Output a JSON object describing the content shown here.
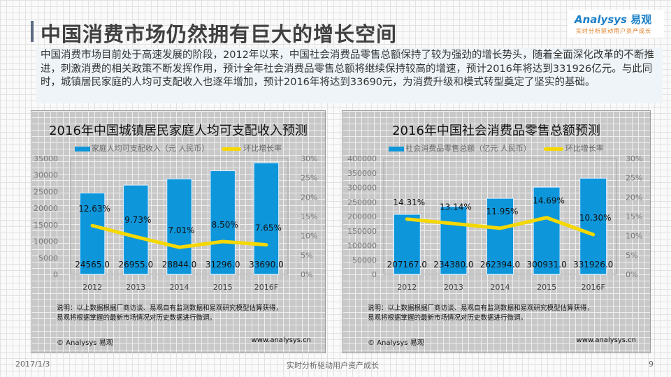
{
  "header": {
    "title": "中国消费市场仍然拥有巨大的增长空间",
    "logo_brand": "Analysys",
    "logo_cn": "易观",
    "logo_slogan": "实时分析驱动用户资产成长"
  },
  "intro": "中国消费市场目前处于高速发展的阶段，2012年以来，中国社会消费品零售总额保持了较为强劲的增长势头，随着全面深化改革的不断推进，刺激消费的相关政策不断发挥作用，预计全年社会消费品零售总额将继续保持较高的增速，预计2016年将达到331926亿元。与此同时，城镇居民家庭的人均可支配收入也逐年增加，预计2016年将达到33690元，为消费升级和模式转型奠定了坚实的基础。",
  "chart_data": [
    {
      "type": "bar",
      "title": "2016年中国城镇居民家庭人均可支配收入预测",
      "categories": [
        "2012",
        "2013",
        "2014",
        "2015",
        "2016F"
      ],
      "series": [
        {
          "name": "家庭人均可支配收入（元 人民币）",
          "values": [
            24565.0,
            26955.0,
            28844.0,
            31296.0,
            33690.0
          ],
          "labels": [
            "24565.0",
            "26955.0",
            "28844.0",
            "31296.0",
            "33690.0"
          ]
        },
        {
          "name": "环比增长率",
          "type": "line",
          "values": [
            12.63,
            9.73,
            7.01,
            8.5,
            7.65
          ],
          "labels": [
            "12.63%",
            "9.73%",
            "7.01%",
            "8.50%",
            "7.65%"
          ]
        }
      ],
      "ylim": [
        0,
        35000
      ],
      "yticks": [
        "0",
        "5000",
        "10000",
        "15000",
        "20000",
        "25000",
        "30000",
        "35000"
      ],
      "y2lim": [
        0,
        30
      ],
      "y2ticks": [
        "0%",
        "5%",
        "10%",
        "15%",
        "20%",
        "25%",
        "30%"
      ]
    },
    {
      "type": "bar",
      "title": "2016年中国社会消费品零售总额预测",
      "categories": [
        "2012",
        "2013",
        "2014",
        "2015",
        "2016F"
      ],
      "series": [
        {
          "name": "社会消费品零售总额（亿元 人民币）",
          "values": [
            207167.0,
            234380.0,
            262394.0,
            300931.0,
            331926.0
          ],
          "labels": [
            "207167.0",
            "234380.0",
            "262394.0",
            "300931.0",
            "331926.0"
          ]
        },
        {
          "name": "环比增长率",
          "type": "line",
          "values": [
            14.31,
            13.14,
            11.95,
            14.69,
            10.3
          ],
          "labels": [
            "14.31%",
            "13.14%",
            "11.95%",
            "14.69%",
            "10.30%"
          ]
        }
      ],
      "ylim": [
        0,
        400000
      ],
      "yticks": [
        "0",
        "50000",
        "100000",
        "150000",
        "200000",
        "250000",
        "300000",
        "350000",
        "400000"
      ],
      "y2lim": [
        0,
        30
      ],
      "y2ticks": [
        "0%",
        "5%",
        "10%",
        "15%",
        "20%",
        "25%",
        "30%"
      ]
    }
  ],
  "panels": {
    "note1": "说明：以上数据根据厂商访谈、易观自有监测数据和易观研究模型估算获得，",
    "note2": "易观将根据掌握的最新市场情况对历史数据进行微调。",
    "copyright": "© Analysys 易观",
    "url": "www.analysys.cn"
  },
  "footer": {
    "date": "2017/1/3",
    "slogan": "实时分析驱动用户资产成长",
    "page": "9"
  },
  "colors": {
    "bar": "#0e96db",
    "line": "#f5d800"
  }
}
